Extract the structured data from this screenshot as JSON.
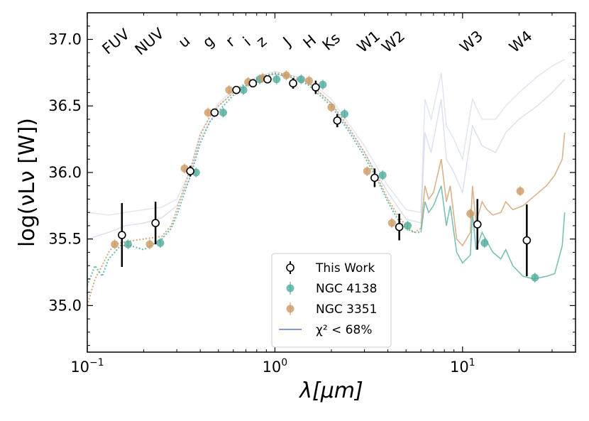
{
  "chart_data": {
    "type": "scatter",
    "xscale": "log",
    "xlim": [
      0.1,
      40
    ],
    "ylim": [
      34.65,
      37.2
    ],
    "xlabel": "λ[μm]",
    "ylabel": "log(νLν [W])",
    "x_ticks": [
      {
        "value": 0.1,
        "base": "10",
        "exp": "−1"
      },
      {
        "value": 1,
        "base": "10",
        "exp": "0"
      },
      {
        "value": 10,
        "base": "10",
        "exp": "1"
      }
    ],
    "y_ticks": [
      {
        "value": 35.0,
        "label": "35.0"
      },
      {
        "value": 35.5,
        "label": "35.5"
      },
      {
        "value": 36.0,
        "label": "36.0"
      },
      {
        "value": 36.5,
        "label": "36.5"
      },
      {
        "value": 37.0,
        "label": "37.0"
      }
    ],
    "bands": [
      {
        "label": "FUV",
        "x": 0.153
      },
      {
        "label": "NUV",
        "x": 0.231
      },
      {
        "label": "u",
        "x": 0.354
      },
      {
        "label": "g",
        "x": 0.477
      },
      {
        "label": "r",
        "x": 0.623
      },
      {
        "label": "i",
        "x": 0.763
      },
      {
        "label": "z",
        "x": 0.913
      },
      {
        "label": "J",
        "x": 1.25
      },
      {
        "label": "H",
        "x": 1.65
      },
      {
        "label": "Ks",
        "x": 2.15
      },
      {
        "label": "W1",
        "x": 3.4
      },
      {
        "label": "W2",
        "x": 4.6
      },
      {
        "label": "W3",
        "x": 12.0
      },
      {
        "label": "W4",
        "x": 22.0
      }
    ],
    "colors": {
      "this_work": "#000000",
      "ngc4138": "#4fab9c",
      "ngc3351": "#cc9a63",
      "chi2": "#8b9bd0"
    },
    "series": [
      {
        "name": "This Work",
        "marker": "open-circle",
        "points": [
          {
            "x": 0.153,
            "y": 35.53,
            "err": 0.24
          },
          {
            "x": 0.231,
            "y": 35.62,
            "err": 0.16
          },
          {
            "x": 0.354,
            "y": 36.01,
            "err": 0.04
          },
          {
            "x": 0.477,
            "y": 36.45,
            "err": 0.0
          },
          {
            "x": 0.623,
            "y": 36.62,
            "err": 0.0
          },
          {
            "x": 0.763,
            "y": 36.67,
            "err": 0.0
          },
          {
            "x": 0.913,
            "y": 36.7,
            "err": 0.0
          },
          {
            "x": 1.25,
            "y": 36.67,
            "err": 0.04
          },
          {
            "x": 1.65,
            "y": 36.64,
            "err": 0.05
          },
          {
            "x": 2.15,
            "y": 36.39,
            "err": 0.05
          },
          {
            "x": 3.4,
            "y": 35.96,
            "err": 0.07
          },
          {
            "x": 4.6,
            "y": 35.59,
            "err": 0.1
          },
          {
            "x": 12.0,
            "y": 35.61,
            "err": 0.19
          },
          {
            "x": 22.0,
            "y": 35.49,
            "err": 0.27
          }
        ]
      },
      {
        "name": "NGC 4138",
        "marker": "filled-circle",
        "points": [
          {
            "x": 0.165,
            "y": 35.46
          },
          {
            "x": 0.245,
            "y": 35.47
          },
          {
            "x": 0.38,
            "y": 36.0
          },
          {
            "x": 0.53,
            "y": 36.45
          },
          {
            "x": 0.68,
            "y": 36.62
          },
          {
            "x": 0.83,
            "y": 36.7
          },
          {
            "x": 1.02,
            "y": 36.7
          },
          {
            "x": 1.38,
            "y": 36.7
          },
          {
            "x": 1.8,
            "y": 36.66
          },
          {
            "x": 2.35,
            "y": 36.44
          },
          {
            "x": 3.75,
            "y": 35.98
          },
          {
            "x": 5.1,
            "y": 35.6
          },
          {
            "x": 13.1,
            "y": 35.47
          },
          {
            "x": 24.3,
            "y": 35.21
          }
        ]
      },
      {
        "name": "NGC 3351",
        "marker": "filled-circle",
        "points": [
          {
            "x": 0.14,
            "y": 35.46
          },
          {
            "x": 0.215,
            "y": 35.46
          },
          {
            "x": 0.33,
            "y": 36.03
          },
          {
            "x": 0.44,
            "y": 36.45
          },
          {
            "x": 0.57,
            "y": 36.62
          },
          {
            "x": 0.72,
            "y": 36.68
          },
          {
            "x": 0.86,
            "y": 36.71
          },
          {
            "x": 1.15,
            "y": 36.73
          },
          {
            "x": 1.52,
            "y": 36.69
          },
          {
            "x": 2.0,
            "y": 36.49
          },
          {
            "x": 3.1,
            "y": 36.01
          },
          {
            "x": 4.2,
            "y": 35.62
          },
          {
            "x": 11.0,
            "y": 35.69
          },
          {
            "x": 20.3,
            "y": 35.86
          }
        ]
      }
    ],
    "legend": {
      "position": "lower-center",
      "entries": [
        {
          "label": "This Work",
          "kind": "errorbar-open"
        },
        {
          "label": "NGC 4138",
          "kind": "errorbar-teal"
        },
        {
          "label": "NGC 3351",
          "kind": "errorbar-tan"
        },
        {
          "label": "χ² < 68%",
          "kind": "line-chi2"
        }
      ]
    },
    "model_curves": {
      "ngc4138": [
        [
          0.1,
          35.15
        ],
        [
          0.11,
          35.3
        ],
        [
          0.12,
          35.22
        ],
        [
          0.13,
          35.35
        ],
        [
          0.14,
          35.4
        ],
        [
          0.15,
          35.45
        ],
        [
          0.17,
          35.45
        ],
        [
          0.2,
          35.42
        ],
        [
          0.25,
          35.5
        ],
        [
          0.28,
          35.58
        ],
        [
          0.3,
          35.68
        ],
        [
          0.33,
          35.85
        ],
        [
          0.36,
          36.0
        ],
        [
          0.4,
          36.22
        ],
        [
          0.45,
          36.38
        ],
        [
          0.5,
          36.46
        ],
        [
          0.6,
          36.58
        ],
        [
          0.7,
          36.65
        ],
        [
          0.8,
          36.7
        ],
        [
          0.9,
          36.73
        ],
        [
          1.0,
          36.74
        ],
        [
          1.2,
          36.72
        ],
        [
          1.5,
          36.66
        ],
        [
          2.0,
          36.5
        ],
        [
          2.5,
          36.3
        ],
        [
          3.0,
          36.12
        ],
        [
          3.5,
          35.95
        ],
        [
          4.0,
          35.78
        ],
        [
          4.5,
          35.65
        ],
        [
          5.0,
          35.58
        ],
        [
          5.5,
          35.55
        ],
        [
          6.0,
          35.55
        ],
        [
          6.3,
          35.78
        ],
        [
          6.6,
          35.7
        ],
        [
          7.0,
          35.75
        ],
        [
          7.7,
          35.9
        ],
        [
          8.2,
          35.6
        ],
        [
          8.6,
          35.75
        ],
        [
          9.3,
          35.4
        ],
        [
          10.0,
          35.32
        ],
        [
          11.0,
          35.38
        ],
        [
          11.3,
          35.7
        ],
        [
          11.8,
          35.42
        ],
        [
          12.7,
          35.55
        ],
        [
          13.5,
          35.48
        ],
        [
          14.5,
          35.4
        ],
        [
          16.0,
          35.35
        ],
        [
          17.0,
          35.42
        ],
        [
          18.5,
          35.3
        ],
        [
          21.0,
          35.22
        ],
        [
          24.0,
          35.2
        ],
        [
          28.0,
          35.22
        ],
        [
          31.0,
          35.24
        ],
        [
          34.0,
          35.45
        ],
        [
          35.0,
          35.7
        ]
      ],
      "ngc3351": [
        [
          0.1,
          35.0
        ],
        [
          0.11,
          35.2
        ],
        [
          0.12,
          35.3
        ],
        [
          0.13,
          35.4
        ],
        [
          0.14,
          35.46
        ],
        [
          0.16,
          35.48
        ],
        [
          0.2,
          35.5
        ],
        [
          0.25,
          35.52
        ],
        [
          0.28,
          35.6
        ],
        [
          0.3,
          35.72
        ],
        [
          0.33,
          35.9
        ],
        [
          0.36,
          36.05
        ],
        [
          0.4,
          36.28
        ],
        [
          0.45,
          36.42
        ],
        [
          0.5,
          36.5
        ],
        [
          0.6,
          36.6
        ],
        [
          0.7,
          36.67
        ],
        [
          0.8,
          36.71
        ],
        [
          0.9,
          36.73
        ],
        [
          1.0,
          36.75
        ],
        [
          1.2,
          36.73
        ],
        [
          1.5,
          36.68
        ],
        [
          2.0,
          36.52
        ],
        [
          2.5,
          36.33
        ],
        [
          3.0,
          36.15
        ],
        [
          3.5,
          35.97
        ],
        [
          4.0,
          35.8
        ],
        [
          4.5,
          35.68
        ],
        [
          5.0,
          35.6
        ],
        [
          5.5,
          35.55
        ],
        [
          6.0,
          35.58
        ],
        [
          6.3,
          35.9
        ],
        [
          6.6,
          35.8
        ],
        [
          7.0,
          35.85
        ],
        [
          7.7,
          36.1
        ],
        [
          8.2,
          35.78
        ],
        [
          8.6,
          35.9
        ],
        [
          9.3,
          35.5
        ],
        [
          10.0,
          35.45
        ],
        [
          11.0,
          35.55
        ],
        [
          11.3,
          35.9
        ],
        [
          11.8,
          35.62
        ],
        [
          12.7,
          35.78
        ],
        [
          13.5,
          35.72
        ],
        [
          14.5,
          35.68
        ],
        [
          16.0,
          35.7
        ],
        [
          17.0,
          35.78
        ],
        [
          18.5,
          35.72
        ],
        [
          21.0,
          35.75
        ],
        [
          24.0,
          35.82
        ],
        [
          28.0,
          35.9
        ],
        [
          31.0,
          35.98
        ],
        [
          34.0,
          36.1
        ],
        [
          35.0,
          36.3
        ]
      ],
      "chi2_a": [
        [
          0.1,
          35.5
        ],
        [
          0.13,
          35.55
        ],
        [
          0.16,
          35.6
        ],
        [
          0.2,
          35.62
        ],
        [
          0.25,
          35.66
        ],
        [
          0.3,
          35.75
        ],
        [
          0.35,
          35.95
        ],
        [
          0.4,
          36.25
        ],
        [
          0.5,
          36.5
        ],
        [
          0.6,
          36.6
        ],
        [
          0.8,
          36.7
        ],
        [
          1.0,
          36.74
        ],
        [
          1.5,
          36.68
        ],
        [
          2.0,
          36.52
        ],
        [
          3.0,
          36.15
        ],
        [
          4.0,
          35.85
        ],
        [
          5.0,
          35.65
        ],
        [
          6.0,
          35.62
        ],
        [
          6.3,
          36.3
        ],
        [
          6.8,
          36.15
        ],
        [
          7.7,
          36.55
        ],
        [
          8.2,
          36.1
        ],
        [
          9.0,
          36.0
        ],
        [
          10.0,
          35.85
        ],
        [
          11.3,
          36.35
        ],
        [
          12.7,
          36.2
        ],
        [
          15.0,
          36.15
        ],
        [
          17.0,
          36.3
        ],
        [
          20.0,
          36.4
        ],
        [
          25.0,
          36.5
        ],
        [
          30.0,
          36.6
        ],
        [
          35.0,
          36.7
        ]
      ],
      "chi2_b": [
        [
          0.1,
          35.7
        ],
        [
          0.13,
          35.68
        ],
        [
          0.16,
          35.7
        ],
        [
          0.2,
          35.72
        ],
        [
          0.25,
          35.74
        ],
        [
          0.3,
          35.8
        ],
        [
          0.35,
          36.0
        ],
        [
          0.4,
          36.3
        ],
        [
          0.5,
          36.52
        ],
        [
          0.6,
          36.62
        ],
        [
          0.8,
          36.72
        ],
        [
          1.0,
          36.76
        ],
        [
          1.5,
          36.7
        ],
        [
          2.0,
          36.55
        ],
        [
          3.0,
          36.2
        ],
        [
          4.0,
          35.9
        ],
        [
          5.0,
          35.72
        ],
        [
          6.0,
          35.7
        ],
        [
          6.3,
          36.55
        ],
        [
          6.8,
          36.4
        ],
        [
          7.7,
          36.75
        ],
        [
          8.2,
          36.35
        ],
        [
          9.0,
          36.25
        ],
        [
          10.0,
          36.1
        ],
        [
          11.3,
          36.55
        ],
        [
          12.7,
          36.4
        ],
        [
          15.0,
          36.4
        ],
        [
          17.0,
          36.5
        ],
        [
          20.0,
          36.6
        ],
        [
          25.0,
          36.72
        ],
        [
          30.0,
          36.8
        ],
        [
          35.0,
          36.85
        ]
      ]
    }
  }
}
